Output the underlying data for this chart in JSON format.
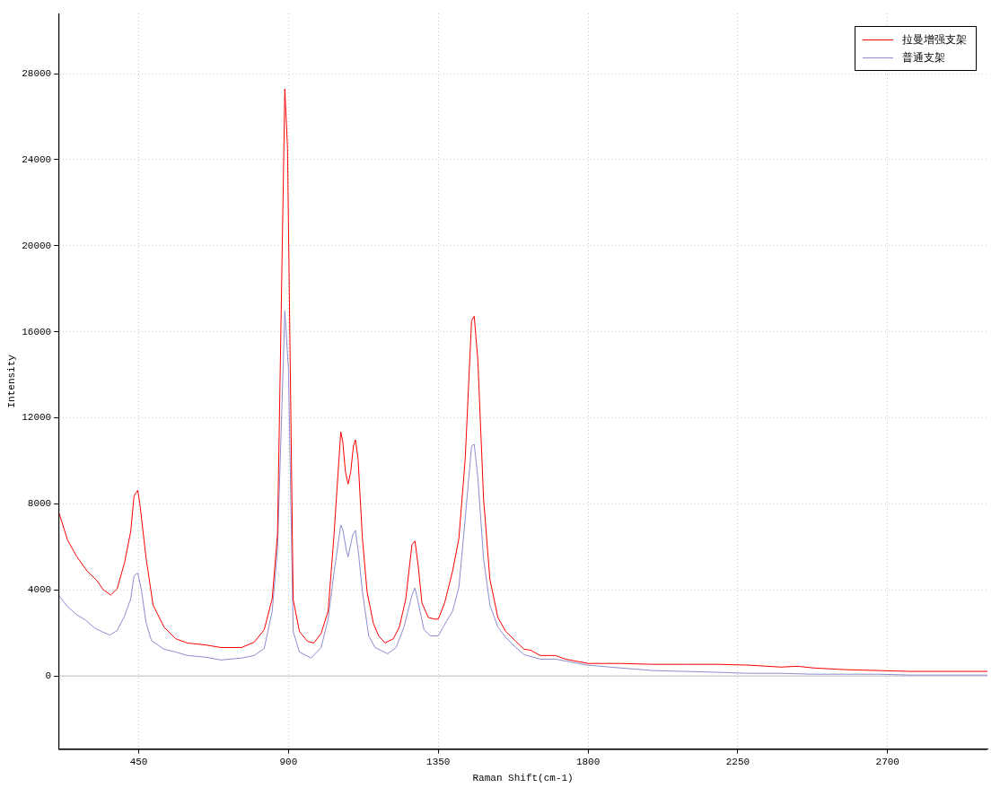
{
  "chart_data": {
    "type": "line",
    "xlabel": "Raman Shift(cm-1)",
    "ylabel": "Intensity",
    "xlim": [
      209,
      3000
    ],
    "xticks": [
      450,
      900,
      1350,
      1800,
      2250,
      2700
    ],
    "ylim": [
      -3400,
      30800
    ],
    "yticks": [
      0,
      4000,
      8000,
      12000,
      16000,
      20000,
      24000,
      28000
    ],
    "grid": true,
    "legend": "top right",
    "marker": "none",
    "line_style": "solid",
    "ref_lines": [
      {
        "axis": "y",
        "value": 0,
        "color": "#c0c0c0"
      }
    ],
    "series": [
      {
        "name": "拉曼增强支架",
        "color": "#ff0000",
        "x": [
          211,
          236,
          263,
          295,
          323,
          344,
          366,
          385,
          407,
          426,
          436,
          447,
          453,
          472,
          493,
          526,
          561,
          596,
          651,
          697,
          759,
          797,
          827,
          851,
          867,
          889,
          897,
          914,
          933,
          957,
          976,
          998,
          1019,
          1036,
          1057,
          1063,
          1071,
          1079,
          1087,
          1095,
          1101,
          1109,
          1122,
          1136,
          1155,
          1171,
          1190,
          1215,
          1233,
          1252,
          1271,
          1280,
          1290,
          1301,
          1320,
          1339,
          1350,
          1369,
          1393,
          1412,
          1431,
          1450,
          1458,
          1469,
          1486,
          1505,
          1529,
          1553,
          1583,
          1608,
          1627,
          1656,
          1702,
          1732,
          1800,
          1898,
          1995,
          2090,
          2188,
          2285,
          2380,
          2429,
          2478,
          2575,
          2673,
          2768,
          2866,
          3000
        ],
        "values": [
          7550,
          6320,
          5570,
          4870,
          4460,
          4000,
          3760,
          4050,
          5240,
          6730,
          8380,
          8630,
          8050,
          5490,
          3300,
          2270,
          1730,
          1530,
          1440,
          1320,
          1320,
          1570,
          2150,
          3590,
          6600,
          27290,
          24560,
          3550,
          2060,
          1610,
          1530,
          1980,
          3010,
          6400,
          11350,
          10900,
          9490,
          8920,
          9490,
          10690,
          10980,
          10110,
          6400,
          3920,
          2440,
          1860,
          1530,
          1730,
          2270,
          3550,
          6110,
          6270,
          5080,
          3390,
          2720,
          2640,
          2640,
          3390,
          4870,
          6400,
          10110,
          16510,
          16720,
          14650,
          8260,
          4500,
          2720,
          2060,
          1610,
          1240,
          1200,
          950,
          950,
          780,
          580,
          580,
          540,
          540,
          540,
          500,
          410,
          450,
          370,
          290,
          250,
          210,
          210,
          210
        ]
      },
      {
        "name": "普通支架",
        "color": "#8c8cd0",
        "x": [
          211,
          236,
          263,
          290,
          317,
          339,
          363,
          385,
          407,
          426,
          436,
          447,
          458,
          472,
          488,
          526,
          561,
          596,
          651,
          697,
          759,
          797,
          827,
          851,
          867,
          889,
          900,
          914,
          933,
          968,
          998,
          1019,
          1036,
          1057,
          1063,
          1074,
          1079,
          1093,
          1101,
          1111,
          1122,
          1141,
          1160,
          1198,
          1223,
          1247,
          1271,
          1280,
          1290,
          1307,
          1326,
          1350,
          1374,
          1393,
          1412,
          1431,
          1450,
          1458,
          1469,
          1486,
          1505,
          1529,
          1553,
          1583,
          1608,
          1656,
          1702,
          1800,
          1898,
          1995,
          2090,
          2188,
          2285,
          2380,
          2478,
          2575,
          2673,
          2768,
          3000
        ],
        "values": [
          3720,
          3220,
          2850,
          2600,
          2230,
          2060,
          1900,
          2110,
          2770,
          3590,
          4660,
          4790,
          4000,
          2480,
          1650,
          1240,
          1110,
          950,
          870,
          740,
          830,
          950,
          1280,
          3010,
          5900,
          16970,
          14240,
          2060,
          1110,
          830,
          1320,
          2640,
          4710,
          7020,
          6810,
          5820,
          5530,
          6560,
          6770,
          5610,
          3920,
          1860,
          1320,
          1030,
          1320,
          2270,
          3760,
          4090,
          3390,
          2150,
          1860,
          1860,
          2520,
          3010,
          4130,
          7310,
          10690,
          10770,
          9210,
          5450,
          3300,
          2270,
          1780,
          1320,
          990,
          780,
          780,
          500,
          370,
          250,
          210,
          170,
          120,
          120,
          80,
          80,
          80,
          40,
          40
        ]
      }
    ]
  }
}
